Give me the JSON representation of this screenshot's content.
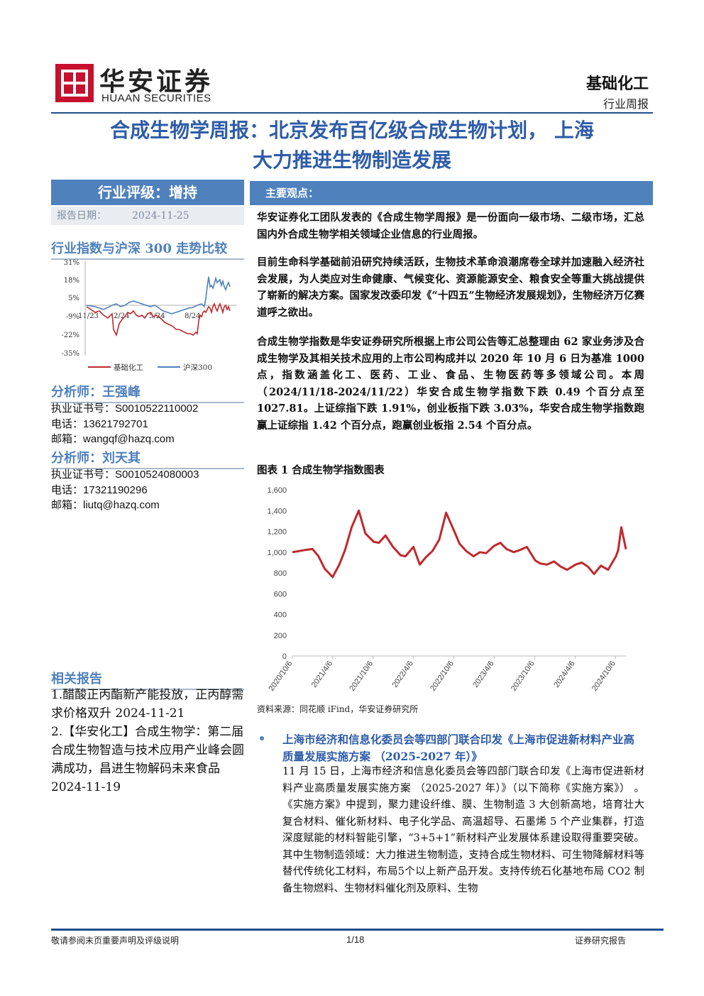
{
  "header": {
    "logo_cn": "华安证券",
    "logo_en": "HUAAN SECURITIES",
    "sector": "基础化工",
    "report_type": "行业周报"
  },
  "title": {
    "line1": "合成生物学周报：北京发布百亿级合成生物计划， 上海",
    "line2": "大力推进生物制造发展"
  },
  "sidebar": {
    "rating": "行业评级：增持",
    "date_label": "报告日期：",
    "date_value": "2024-11-25",
    "trend_title": "行业指数与沪深 300 走势比较",
    "mini_chart": {
      "y_ticks": [
        "31%",
        "18%",
        "5%",
        "-9%",
        "-22%",
        "-35%"
      ],
      "x_ticks": [
        "11/23",
        "2/24",
        "5/24",
        "8/24"
      ],
      "legend": [
        "基础化工",
        "沪深300"
      ],
      "colors": {
        "series1": "#c0282d",
        "series2": "#4f81bd"
      }
    },
    "analysts": [
      {
        "heading": "分析师：王强峰",
        "cert_label": "执业证书号：",
        "cert": "S0010522110002",
        "phone_label": "电话：",
        "phone": "13621792701",
        "email_label": "邮箱：",
        "email": "wangqf@hazq.com"
      },
      {
        "heading": "分析师：刘天其",
        "cert_label": "执业证书号：",
        "cert": "S0010524080003",
        "phone_label": "电话：",
        "phone": "17321190296",
        "email_label": "邮箱：",
        "email": "liutq@hazq.com"
      }
    ],
    "related_title": "相关报告",
    "related": [
      "1.醋酸正丙酯新产能投放，正丙醇需求价格双升 2024-11-21",
      "2.【华安化工】合成生物学：第二届合成生物智造与技术应用产业峰会圆满成功，昌进生物解码未来食品 2024-11-19"
    ]
  },
  "main": {
    "bar_title": "主要观点：",
    "para1": "华安证券化工团队发表的《合成生物学周报》是一份面向一级市场、二级市场，汇总国内外合成生物学相关领域企业信息的行业周报。",
    "para2": "目前生命科学基础前沿研究持续活跃，生物技术革命浪潮席卷全球并加速融入经济社会发展，为人类应对生命健康、气候变化、资源能源安全、粮食安全等重大挑战提供了崭新的解决方案。国家发改委印发《“十四五”生物经济发展规划》，生物经济万亿赛道呼之欲出。",
    "para3": "合成生物学指数是华安证券研究所根据上市公司公告等汇总整理由 62 家业务涉及合成生物学及其相关技术应用的上市公司构成并以 2020 年 10 月 6 日为基准 1000 点，指数涵盖化工、医药、工业、食品、生物医药等多领域公司。本周（2024/11/18-2024/11/22）华安合成生物学指数下跌 0.49 个百分点至 1027.81。上证综指下跌 1.91%，创业板指下跌 3.03%，华安合成生物学指数跑赢上证综指 1.42 个百分点，跑赢创业板指 2.54 个百分点。",
    "figure_title": "图表 1 合成生物学指数图表",
    "source": "资料来源：同花顺 iFind，华安证券研究所",
    "bullet_head": "上海市经济和信息化委员会等四部门联合印发《上海市促进新材料产业高质量发展实施方案 （2025-2027 年）》",
    "bullet_body": "11 月 15 日，上海市经济和信息化委员会等四部门联合印发《上海市促进新材料产业高质量发展实施方案 （2025-2027 年）》（以下简称《实施方案》） 。《实施方案》中提到，聚力建设纤维、膜、生物制造 3 大创新高地，培育壮大复合材料、催化新材料、电子化学品、高温超导、石墨烯 5 个产业集群，打造深度赋能的材料智能引擎，“3+5+1”新材料产业发展体系建设取得重要突破。其中生物制造领域：大力推进生物制造，支持合成生物材料、可生物降解材料等替代传统化工材料，布局5个以上新产品开发。支持传统石化基地布局 CO2 制备生物燃料、生物材料催化剂及原料、生物"
  },
  "chart_data": {
    "type": "line",
    "title": "图表 1 合成生物学指数图表",
    "x": [
      "2020/10/6",
      "2020/12/1",
      "2021/1/5",
      "2021/2/1",
      "2021/3/1",
      "2021/4/6",
      "2021/5/6",
      "2021/6/1",
      "2021/7/1",
      "2021/8/2",
      "2021/9/1",
      "2021/10/8",
      "2021/11/1",
      "2021/12/1",
      "2022/1/4",
      "2022/2/7",
      "2022/3/1",
      "2022/4/6",
      "2022/5/5",
      "2022/6/1",
      "2022/7/1",
      "2022/8/1",
      "2022/9/1",
      "2022/10/10",
      "2022/11/1",
      "2022/12/1",
      "2023/1/3",
      "2023/2/1",
      "2023/3/1",
      "2023/4/6",
      "2023/5/4",
      "2023/6/1",
      "2023/7/3",
      "2023/8/1",
      "2023/9/1",
      "2023/10/9",
      "2023/11/1",
      "2023/12/1",
      "2024/1/2",
      "2024/2/1",
      "2024/3/1",
      "2024/4/8",
      "2024/5/6",
      "2024/6/3",
      "2024/7/1",
      "2024/8/1",
      "2024/9/2",
      "2024/10/8",
      "2024/10/18",
      "2024/11/1",
      "2024/11/22"
    ],
    "series": [
      {
        "values": [
          1000,
          1020,
          1030,
          960,
          840,
          760,
          880,
          1020,
          1240,
          1400,
          1180,
          1100,
          1090,
          1160,
          1050,
          970,
          960,
          1050,
          880,
          950,
          1010,
          1120,
          1380,
          1190,
          1080,
          1010,
          960,
          1000,
          990,
          1060,
          1090,
          1030,
          1000,
          1020,
          1050,
          920,
          890,
          880,
          910,
          860,
          830,
          880,
          900,
          860,
          790,
          870,
          830,
          960,
          1020,
          1240,
          1028
        ]
      }
    ],
    "y_ticks": [
      "0",
      "200",
      "400",
      "600",
      "800",
      "1,000",
      "1,200",
      "1,400",
      "1,600"
    ],
    "x_ticks": [
      "2020/10/6",
      "2021/4/6",
      "2021/10/6",
      "2022/4/6",
      "2022/10/6",
      "2023/4/6",
      "2023/10/6",
      "2024/4/6",
      "2024/10/6"
    ],
    "ylim": [
      0,
      1600
    ],
    "color": "#c0282d",
    "grid": false
  },
  "footer": {
    "left": "敬请参阅末页重要声明及评级说明",
    "page": "1/18",
    "right": "证券研究报告"
  }
}
